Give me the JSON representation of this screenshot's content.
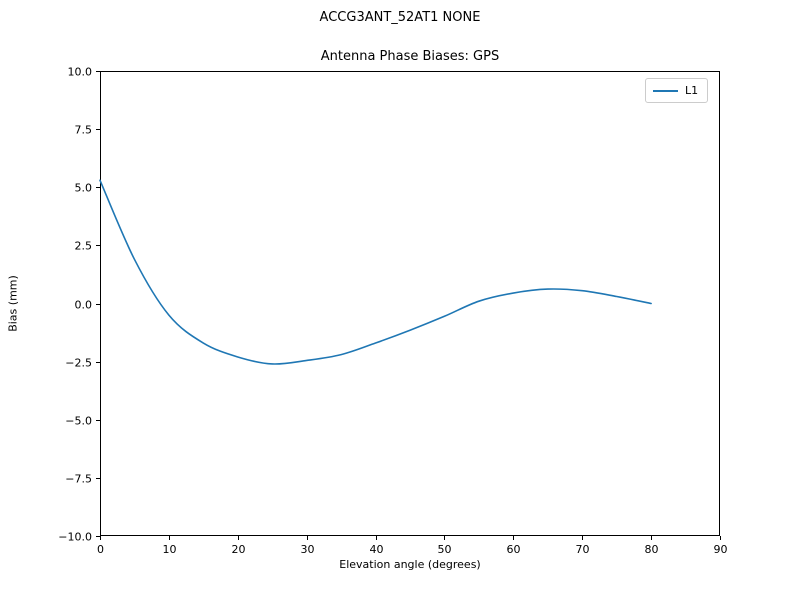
{
  "chart_data": {
    "type": "line",
    "title": "ACCG3ANT_52AT1  NONE",
    "axes_title": "Antenna Phase Biases: GPS",
    "xlabel": "Elevation angle (degrees)",
    "ylabel": "Bias (mm)",
    "xlim": [
      0,
      90
    ],
    "ylim": [
      -10,
      10
    ],
    "xticks": [
      0,
      10,
      20,
      30,
      40,
      50,
      60,
      70,
      80,
      90
    ],
    "xtick_labels": [
      "0",
      "10",
      "20",
      "30",
      "40",
      "50",
      "60",
      "70",
      "80",
      "90"
    ],
    "yticks": [
      -10,
      -7.5,
      -5,
      -2.5,
      0,
      2.5,
      5,
      7.5,
      10
    ],
    "ytick_labels": [
      "−10.0",
      "−7.5",
      "−5.0",
      "−2.5",
      "0.0",
      "2.5",
      "5.0",
      "7.5",
      "10.0"
    ],
    "grid": false,
    "legend_position": "upper right",
    "series": [
      {
        "name": "L1",
        "color": "#1f77b4",
        "x": [
          0,
          5,
          10,
          15,
          20,
          25,
          30,
          35,
          40,
          45,
          50,
          55,
          60,
          65,
          70,
          75,
          80
        ],
        "y": [
          5.3,
          1.9,
          -0.5,
          -1.7,
          -2.3,
          -2.6,
          -2.45,
          -2.2,
          -1.7,
          -1.15,
          -0.55,
          0.1,
          0.45,
          0.62,
          0.55,
          0.3,
          0.0
        ]
      }
    ]
  }
}
